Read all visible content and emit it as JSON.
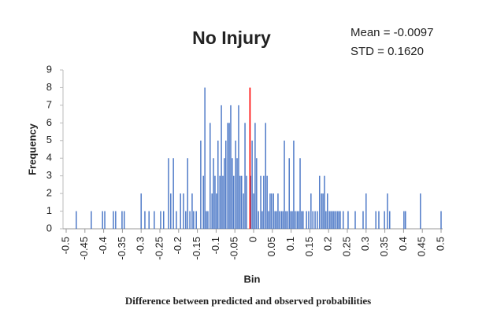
{
  "chart_data": {
    "type": "bar",
    "title": "No Injury",
    "annotations": [
      "Mean = -0.0097",
      "STD = 0.1620"
    ],
    "xlabel": "Bin",
    "ylabel": "Frequency",
    "caption": "Difference between predicted and observed probabilities",
    "color": "#4472c4",
    "reference_line": {
      "x": -0.0097,
      "y": 8,
      "color": "#ff0000"
    },
    "x": [
      -0.473,
      -0.433,
      -0.403,
      -0.397,
      -0.374,
      -0.368,
      -0.351,
      -0.345,
      -0.3,
      -0.29,
      -0.279,
      -0.265,
      -0.248,
      -0.24,
      -0.227,
      -0.221,
      -0.214,
      -0.206,
      -0.195,
      -0.187,
      -0.181,
      -0.176,
      -0.17,
      -0.164,
      -0.16,
      -0.153,
      -0.141,
      -0.134,
      -0.13,
      -0.126,
      -0.122,
      -0.116,
      -0.111,
      -0.107,
      -0.103,
      -0.099,
      -0.095,
      -0.09,
      -0.086,
      -0.082,
      -0.078,
      -0.074,
      -0.069,
      -0.065,
      -0.061,
      -0.057,
      -0.053,
      -0.048,
      -0.044,
      -0.04,
      -0.036,
      -0.032,
      -0.027,
      -0.023,
      -0.019,
      -0.008,
      -0.004,
      0,
      0.004,
      0.008,
      0.013,
      0.019,
      0.023,
      0.027,
      0.032,
      0.036,
      0.04,
      0.044,
      0.048,
      0.053,
      0.057,
      0.061,
      0.065,
      0.069,
      0.074,
      0.078,
      0.082,
      0.086,
      0.09,
      0.095,
      0.099,
      0.103,
      0.107,
      0.111,
      0.116,
      0.12,
      0.124,
      0.128,
      0.132,
      0.141,
      0.147,
      0.153,
      0.158,
      0.164,
      0.17,
      0.176,
      0.181,
      0.185,
      0.189,
      0.193,
      0.197,
      0.202,
      0.206,
      0.21,
      0.214,
      0.218,
      0.223,
      0.227,
      0.231,
      0.239,
      0.252,
      0.271,
      0.292,
      0.3,
      0.326,
      0.334,
      0.349,
      0.357,
      0.363,
      0.401,
      0.405,
      0.445,
      0.5
    ],
    "values": [
      1,
      1,
      1,
      1,
      1,
      1,
      1,
      1,
      2,
      1,
      1,
      1,
      1,
      1,
      4,
      2,
      4,
      1,
      2,
      2,
      1,
      4,
      1,
      2,
      1,
      1,
      5,
      3,
      8,
      1,
      1,
      6,
      2,
      4,
      3,
      2,
      5,
      3,
      7,
      3,
      4,
      5,
      6,
      6,
      7,
      4,
      3,
      5,
      4,
      7,
      3,
      3,
      2,
      6,
      3,
      3,
      5,
      2,
      6,
      4,
      1,
      3,
      1,
      3,
      6,
      3,
      1,
      2,
      2,
      2,
      1,
      1,
      2,
      1,
      1,
      1,
      5,
      1,
      1,
      4,
      1,
      1,
      5,
      1,
      1,
      1,
      4,
      1,
      1,
      1,
      1,
      2,
      1,
      1,
      1,
      3,
      2,
      2,
      3,
      1,
      2,
      1,
      1,
      1,
      1,
      1,
      1,
      1,
      1,
      1,
      1,
      1,
      1,
      2,
      1,
      1,
      1,
      2,
      1,
      1,
      1,
      2,
      1
    ],
    "xlim": [
      -0.5,
      0.5
    ],
    "xticks": [
      -0.5,
      -0.45,
      -0.4,
      -0.35,
      -0.3,
      -0.25,
      -0.2,
      -0.15,
      -0.1,
      -0.05,
      0,
      0.05,
      0.1,
      0.15,
      0.2,
      0.25,
      0.3,
      0.35,
      0.4,
      0.45,
      0.5
    ],
    "ylim": [
      0,
      9
    ],
    "yticks": [
      0,
      1,
      2,
      3,
      4,
      5,
      6,
      7,
      8,
      9
    ],
    "grid": false
  }
}
